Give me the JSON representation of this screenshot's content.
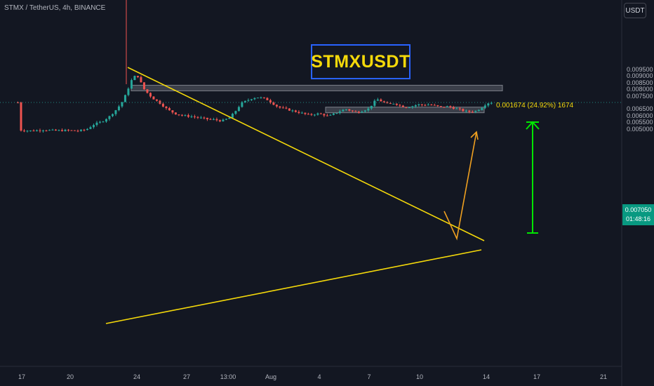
{
  "header": {
    "ticker": "STMX / TetherUS, 4h, BINANCE",
    "currency": "USDT"
  },
  "annotations": {
    "title": "STMXUSDT",
    "measure": "0.001674 (24.92%) 1674"
  },
  "price": {
    "last": "0.007050",
    "countdown": "01:48:16"
  },
  "colors": {
    "up": "#26a69a",
    "down": "#ef5350",
    "trend": "#f5d90a",
    "target_arrow": "#00e600",
    "projection": "#f0a020",
    "title_border": "#2962ff"
  },
  "chart_data": {
    "type": "candlestick",
    "title": "STMXUSDT",
    "symbol": "STMX / TetherUS, 4h, BINANCE",
    "currency": "USDT",
    "y_ticks": [
      "0.009500",
      "0.009000",
      "0.008500",
      "0.008000",
      "0.007500",
      "0.006500",
      "0.006000",
      "0.005500",
      "0.005000"
    ],
    "x_ticks": [
      "17",
      "20",
      "24",
      "27",
      "13:00",
      "Aug",
      "4",
      "7",
      "10",
      "14",
      "17",
      "21"
    ],
    "ylim": [
      0.0046,
      0.0104
    ],
    "last_price": 0.00705,
    "lows_series": [
      [
        17.5,
        0.00496
      ],
      [
        18.2,
        0.0049
      ],
      [
        18.8,
        0.00498
      ],
      [
        19.4,
        0.00492
      ],
      [
        20.0,
        0.00494
      ],
      [
        20.6,
        0.0049
      ],
      [
        21.0,
        0.005
      ],
      [
        21.4,
        0.0054
      ],
      [
        21.8,
        0.0056
      ],
      [
        22.2,
        0.006
      ],
      [
        22.6,
        0.0066
      ],
      [
        22.9,
        0.0072
      ],
      [
        23.1,
        0.0079
      ],
      [
        23.35,
        0.0088
      ],
      [
        23.6,
        0.0092
      ],
      [
        23.8,
        0.0086
      ],
      [
        24.0,
        0.008
      ],
      [
        24.4,
        0.0074
      ],
      [
        24.8,
        0.007
      ],
      [
        25.2,
        0.0065
      ],
      [
        25.6,
        0.0062
      ],
      [
        26.0,
        0.00605
      ],
      [
        26.4,
        0.006
      ],
      [
        26.8,
        0.0059
      ],
      [
        27.2,
        0.0058
      ],
      [
        27.6,
        0.00575
      ],
      [
        28.0,
        0.00565
      ],
      [
        28.4,
        0.0059
      ],
      [
        28.7,
        0.0064
      ],
      [
        29.0,
        0.007
      ],
      [
        29.3,
        0.0072
      ],
      [
        29.6,
        0.0074
      ],
      [
        29.9,
        0.00745
      ],
      [
        30.3,
        0.0073
      ],
      [
        30.6,
        0.007
      ],
      [
        30.9,
        0.0067
      ],
      [
        31.3,
        0.00655
      ],
      [
        31.7,
        0.0064
      ],
      [
        32.1,
        0.00625
      ],
      [
        32.5,
        0.0061
      ],
      [
        32.9,
        0.0062
      ],
      [
        33.2,
        0.00615
      ],
      [
        33.5,
        0.006
      ],
      [
        33.8,
        0.0062
      ],
      [
        34.1,
        0.0064
      ],
      [
        34.4,
        0.00655
      ],
      [
        34.7,
        0.0064
      ],
      [
        35.0,
        0.0063
      ],
      [
        35.3,
        0.00645
      ],
      [
        35.6,
        0.0066
      ],
      [
        35.8,
        0.007
      ],
      [
        36.0,
        0.0073
      ],
      [
        36.3,
        0.0071
      ],
      [
        36.6,
        0.0069
      ],
      [
        36.9,
        0.007
      ],
      [
        37.2,
        0.0068
      ],
      [
        37.5,
        0.0067
      ],
      [
        37.8,
        0.00675
      ],
      [
        38.1,
        0.0069
      ],
      [
        38.4,
        0.00685
      ],
      [
        38.7,
        0.0069
      ],
      [
        39.0,
        0.0068
      ],
      [
        39.3,
        0.0067
      ],
      [
        39.6,
        0.00675
      ],
      [
        39.9,
        0.00665
      ],
      [
        40.2,
        0.00655
      ],
      [
        40.5,
        0.0064
      ],
      [
        40.8,
        0.00635
      ],
      [
        41.1,
        0.0064
      ],
      [
        41.35,
        0.0066
      ],
      [
        41.6,
        0.0069
      ],
      [
        41.8,
        0.00705
      ]
    ],
    "lines": [
      {
        "name": "descending-trendline",
        "points": [
          [
            23.6,
            0.0092
          ],
          [
            43.0,
            0.0066
          ]
        ]
      },
      {
        "name": "ascending-trendline",
        "points": [
          [
            22.5,
            0.00535
          ],
          [
            42.8,
            0.00645
          ]
        ]
      },
      {
        "name": "projection-arrow",
        "points": [
          [
            41.8,
            0.00705
          ],
          [
            42.4,
            0.00662
          ],
          [
            43.2,
            0.00833
          ]
        ]
      }
    ],
    "zones": [
      {
        "name": "resistance-zone",
        "y": [
          0.00818,
          0.00836
        ],
        "x": [
          23.8,
          45.0
        ]
      },
      {
        "name": "support-zone",
        "y": [
          0.0066,
          0.0067
        ],
        "x": [
          36.6,
          43.0
        ]
      }
    ],
    "measure": {
      "from": 0.0067,
      "to": 0.00837,
      "label": "0.001674 (24.92%) 1674"
    }
  }
}
